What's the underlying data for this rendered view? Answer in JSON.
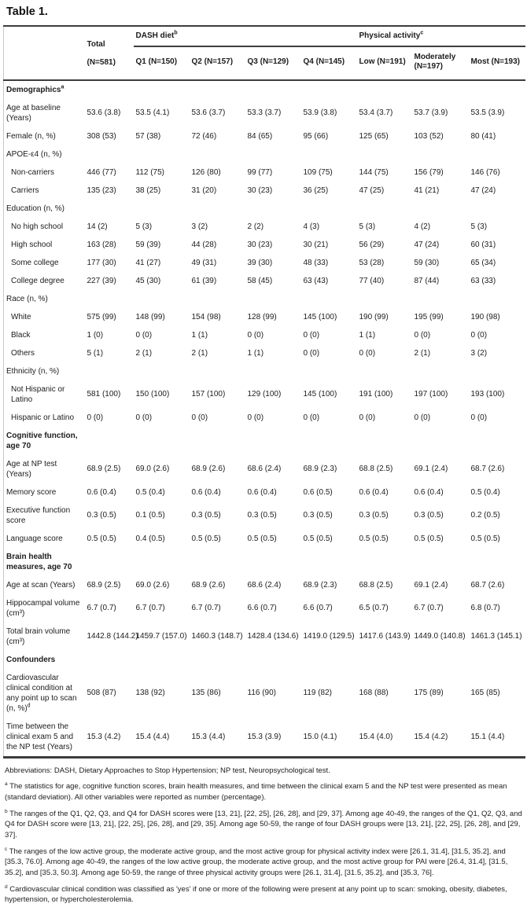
{
  "title": "Table 1.",
  "colors": {
    "background": "#ffffff",
    "text": "#1c1c1c",
    "rule": "#3d3d3d",
    "left_edge_line": "#c9c9c9"
  },
  "table": {
    "header": {
      "total": {
        "label": "Total",
        "sub": "(N=581)"
      },
      "groups": [
        {
          "label": "DASH diet",
          "sup": "b"
        },
        {
          "label": "Physical activity",
          "sup": "c"
        }
      ],
      "columns": [
        "Q1 (N=150)",
        "Q2 (N=157)",
        "Q3 (N=129)",
        "Q4 (N=145)",
        "Low (N=191)",
        "Moderately (N=197)",
        "Most (N=193)"
      ]
    },
    "rows": [
      {
        "type": "section",
        "label": "Demographics",
        "sup": "a"
      },
      {
        "type": "data",
        "label": "Age at baseline (Years)",
        "values": [
          "53.6 (3.8)",
          "53.5 (4.1)",
          "53.6 (3.7)",
          "53.3 (3.7)",
          "53.9 (3.8)",
          "53.4 (3.7)",
          "53.7 (3.9)",
          "53.5 (3.9)"
        ]
      },
      {
        "type": "data",
        "label": "Female (n, %)",
        "values": [
          "308 (53)",
          "57 (38)",
          "72 (46)",
          "84 (65)",
          "95 (66)",
          "125 (65)",
          "103 (52)",
          "80 (41)"
        ]
      },
      {
        "type": "subsection",
        "label": "APOE-ε4 (n, %)"
      },
      {
        "type": "data",
        "indent": true,
        "label": "Non-carriers",
        "values": [
          "446 (77)",
          "112 (75)",
          "126 (80)",
          "99 (77)",
          "109 (75)",
          "144 (75)",
          "156 (79)",
          "146 (76)"
        ]
      },
      {
        "type": "data",
        "indent": true,
        "label": "Carriers",
        "values": [
          "135 (23)",
          "38 (25)",
          "31 (20)",
          "30 (23)",
          "36 (25)",
          "47 (25)",
          "41 (21)",
          "47 (24)"
        ]
      },
      {
        "type": "subsection",
        "label": "Education (n, %)"
      },
      {
        "type": "data",
        "indent": true,
        "label": "No high school",
        "values": [
          "14 (2)",
          "5 (3)",
          "3 (2)",
          "2 (2)",
          "4 (3)",
          "5 (3)",
          "4 (2)",
          "5 (3)"
        ]
      },
      {
        "type": "data",
        "indent": true,
        "label": "High school",
        "values": [
          "163 (28)",
          "59 (39)",
          "44 (28)",
          "30 (23)",
          "30 (21)",
          "56 (29)",
          "47 (24)",
          "60 (31)"
        ]
      },
      {
        "type": "data",
        "indent": true,
        "label": "Some college",
        "values": [
          "177 (30)",
          "41 (27)",
          "49 (31)",
          "39 (30)",
          "48 (33)",
          "53 (28)",
          "59 (30)",
          "65 (34)"
        ]
      },
      {
        "type": "data",
        "indent": true,
        "label": "College degree",
        "values": [
          "227 (39)",
          "45 (30)",
          "61 (39)",
          "58 (45)",
          "63 (43)",
          "77 (40)",
          "87 (44)",
          "63 (33)"
        ]
      },
      {
        "type": "subsection",
        "label": "Race (n, %)"
      },
      {
        "type": "data",
        "indent": true,
        "label": "White",
        "values": [
          "575 (99)",
          "148 (99)",
          "154 (98)",
          "128 (99)",
          "145 (100)",
          "190 (99)",
          "195 (99)",
          "190 (98)"
        ]
      },
      {
        "type": "data",
        "indent": true,
        "label": "Black",
        "values": [
          "1 (0)",
          "0 (0)",
          "1 (1)",
          "0 (0)",
          "0 (0)",
          "1 (1)",
          "0 (0)",
          "0 (0)"
        ]
      },
      {
        "type": "data",
        "indent": true,
        "label": "Others",
        "values": [
          "5 (1)",
          "2 (1)",
          "2 (1)",
          "1 (1)",
          "0 (0)",
          "0 (0)",
          "2 (1)",
          "3 (2)"
        ]
      },
      {
        "type": "subsection",
        "label": "Ethnicity (n, %)"
      },
      {
        "type": "data",
        "indent": true,
        "label": "Not Hispanic or Latino",
        "values": [
          "581 (100)",
          "150 (100)",
          "157 (100)",
          "129 (100)",
          "145 (100)",
          "191 (100)",
          "197 (100)",
          "193 (100)"
        ]
      },
      {
        "type": "data",
        "indent": true,
        "label": "Hispanic or Latino",
        "values": [
          "0 (0)",
          "0 (0)",
          "0 (0)",
          "0 (0)",
          "0 (0)",
          "0 (0)",
          "0 (0)",
          "0 (0)"
        ]
      },
      {
        "type": "section",
        "label": "Cognitive function, age 70"
      },
      {
        "type": "data",
        "label": "Age at NP test (Years)",
        "values": [
          "68.9 (2.5)",
          "69.0 (2.6)",
          "68.9 (2.6)",
          "68.6 (2.4)",
          "68.9 (2.3)",
          "68.8 (2.5)",
          "69.1 (2.4)",
          "68.7 (2.6)"
        ]
      },
      {
        "type": "data",
        "label": "Memory score",
        "values": [
          "0.6 (0.4)",
          "0.5 (0.4)",
          "0.6 (0.4)",
          "0.6 (0.4)",
          "0.6 (0.5)",
          "0.6 (0.4)",
          "0.6 (0.4)",
          "0.5 (0.4)"
        ]
      },
      {
        "type": "data",
        "label": "Executive function score",
        "values": [
          "0.3 (0.5)",
          "0.1 (0.5)",
          "0.3 (0.5)",
          "0.3 (0.5)",
          "0.3 (0.5)",
          "0.3 (0.5)",
          "0.3 (0.5)",
          "0.2 (0.5)"
        ]
      },
      {
        "type": "data",
        "label": "Language score",
        "values": [
          "0.5 (0.5)",
          "0.4 (0.5)",
          "0.5 (0.5)",
          "0.5 (0.5)",
          "0.5 (0.5)",
          "0.5 (0.5)",
          "0.5 (0.5)",
          "0.5 (0.5)"
        ]
      },
      {
        "type": "section",
        "label": "Brain health measures, age 70"
      },
      {
        "type": "data",
        "label": "Age at scan (Years)",
        "values": [
          "68.9 (2.5)",
          "69.0 (2.6)",
          "68.9 (2.6)",
          "68.6 (2.4)",
          "68.9 (2.3)",
          "68.8 (2.5)",
          "69.1 (2.4)",
          "68.7 (2.6)"
        ]
      },
      {
        "type": "data",
        "label": "Hippocampal volume (cm³)",
        "values": [
          "6.7 (0.7)",
          "6.7 (0.7)",
          "6.7 (0.7)",
          "6.6 (0.7)",
          "6.6 (0.7)",
          "6.5 (0.7)",
          "6.7 (0.7)",
          "6.8 (0.7)"
        ]
      },
      {
        "type": "data",
        "label": "Total brain volume (cm³)",
        "values": [
          "1442.8 (144.2)",
          "1459.7 (157.0)",
          "1460.3 (148.7)",
          "1428.4 (134.6)",
          "1419.0 (129.5)",
          "1417.6 (143.9)",
          "1449.0 (140.8)",
          "1461.3 (145.1)"
        ]
      },
      {
        "type": "section",
        "label": "Confounders"
      },
      {
        "type": "data",
        "label": "Cardiovascular clinical condition at any point up to scan (n, %)",
        "sup": "d",
        "values": [
          "508 (87)",
          "138 (92)",
          "135 (86)",
          "116 (90)",
          "119 (82)",
          "168 (88)",
          "175 (89)",
          "165 (85)"
        ]
      },
      {
        "type": "data",
        "label": "Time between the clinical exam 5 and the NP test (Years)",
        "values": [
          "15.3 (4.2)",
          "15.4 (4.4)",
          "15.3 (4.4)",
          "15.3 (3.9)",
          "15.0 (4.1)",
          "15.4 (4.0)",
          "15.4 (4.2)",
          "15.1 (4.4)"
        ]
      }
    ]
  },
  "footnotes": [
    {
      "sup": "",
      "text": "Abbreviations: DASH, Dietary Approaches to Stop Hypertension; NP test, Neuropsychological test."
    },
    {
      "sup": "a",
      "text": "The statistics for age, cognitive function scores, brain health measures, and time between the clinical exam 5 and the NP test were presented as mean (standard deviation). All other variables were reported as number (percentage)."
    },
    {
      "sup": "b",
      "text": "The ranges of the Q1, Q2, Q3, and Q4 for DASH scores were [13, 21], [22, 25], [26, 28], and [29, 37]. Among age 40-49, the ranges of the Q1, Q2, Q3, and Q4 for DASH score were [13, 21], [22, 25], [26, 28], and [29, 35]. Among age 50-59, the range of four DASH groups were [13, 21], [22, 25], [26, 28], and [29, 37]."
    },
    {
      "sup": "c",
      "text": "The ranges of the low active group, the moderate active group, and the most active group for physical activity index were [26.1, 31.4], [31.5, 35.2], and [35.3, 76.0]. Among age 40-49, the ranges of the low active group, the moderate active group, and the most active group for PAI were [26.4, 31.4], [31.5, 35.2], and [35.3, 50.3]. Among age 50-59, the range of three physical activity groups were [26.1, 31.4], [31.5, 35.2], and [35.3, 76]."
    },
    {
      "sup": "d",
      "text": "Cardiovascular clinical condition was classified as 'yes' if one or more of the following were present at any point up to scan: smoking, obesity, diabetes, hypertension, or hypercholesterolemia."
    }
  ]
}
